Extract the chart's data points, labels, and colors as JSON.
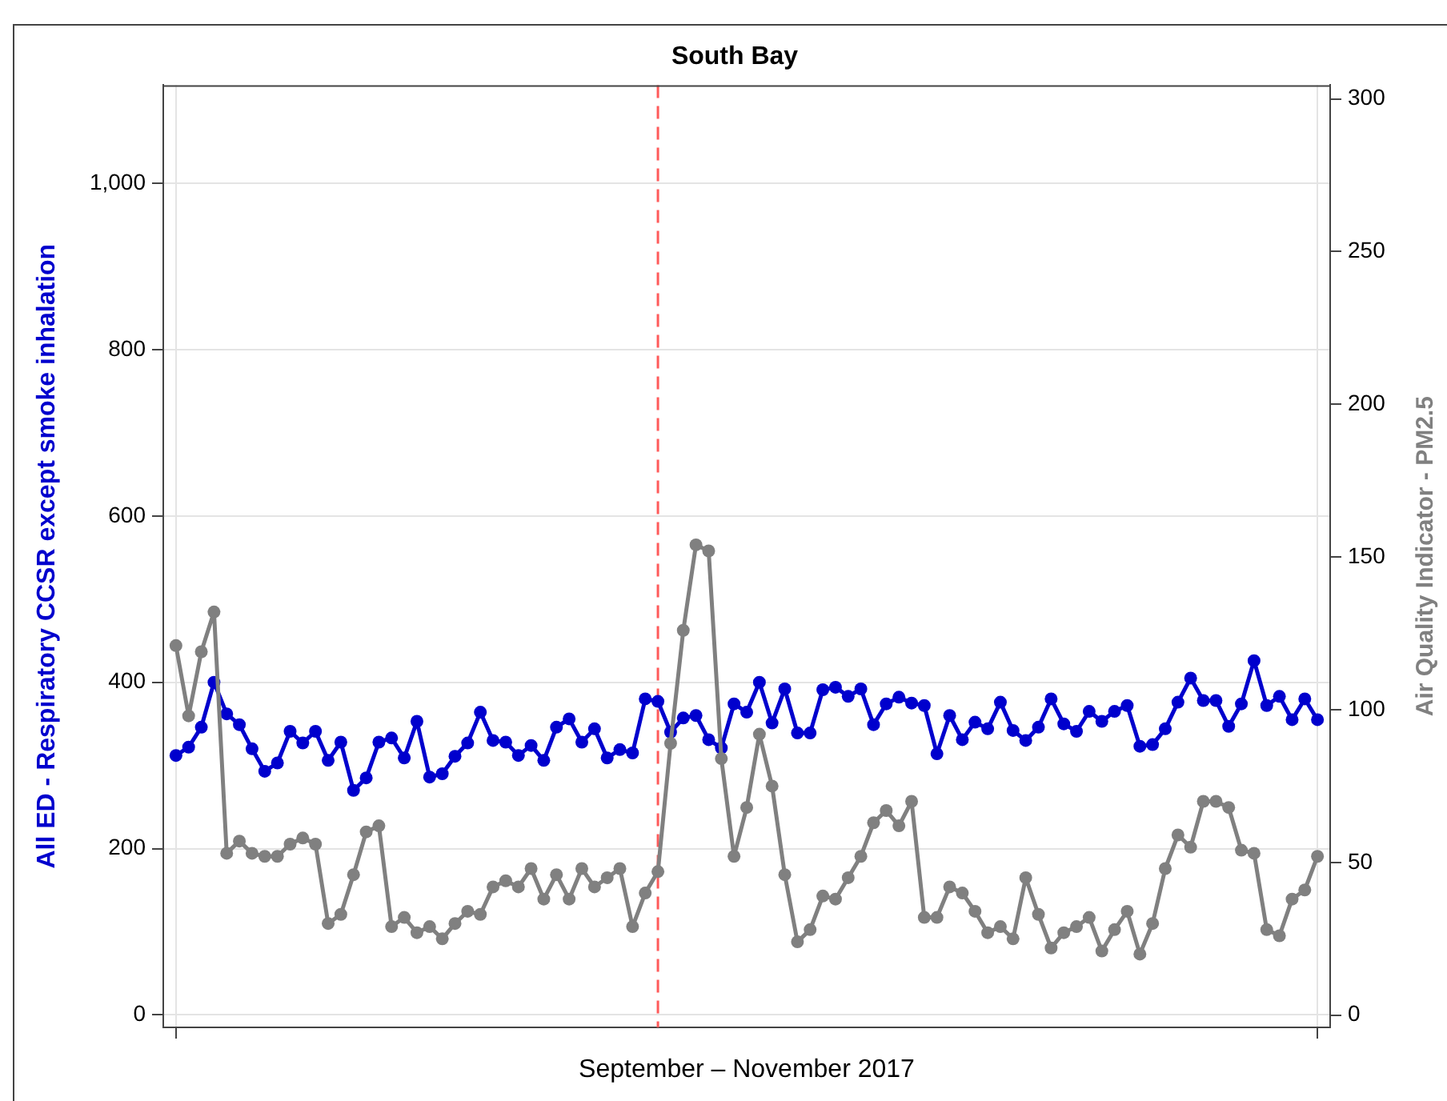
{
  "chart_data": {
    "type": "line",
    "title": "South Bay",
    "xlabel": "September – November 2017",
    "ylabel": "All ED - Respiratory CCSR except smoke inhalation",
    "y2label": "Air Quality Indicator - PM2.5",
    "categories": [
      null,
      null,
      null,
      null,
      null,
      null,
      null,
      null,
      null,
      null,
      null,
      null,
      null,
      null,
      null,
      null,
      null,
      null,
      null,
      null,
      null,
      null,
      null,
      null,
      null,
      null,
      null,
      null,
      null,
      null,
      null,
      null,
      null,
      null,
      null,
      null,
      null,
      null,
      null,
      null,
      null,
      null,
      null,
      null,
      null,
      null,
      null,
      null,
      null,
      null,
      null,
      null,
      null,
      null,
      null,
      null,
      null,
      null,
      null,
      null,
      null,
      null,
      null,
      null,
      null,
      null,
      null,
      null,
      null,
      null,
      null,
      null,
      null,
      null,
      null,
      null,
      null,
      null,
      null,
      null,
      null,
      null,
      null,
      null,
      null,
      null,
      null,
      null,
      null,
      null,
      null
    ],
    "series": [
      {
        "color": "#0000cd",
        "values": [
          312,
          322,
          346,
          400,
          362,
          349,
          320,
          293,
          303,
          341,
          327,
          341,
          306,
          328,
          270,
          285,
          328,
          333,
          309,
          353,
          286,
          290,
          311,
          327,
          364,
          330,
          328,
          312,
          324,
          306,
          346,
          356,
          328,
          344,
          309,
          319,
          315,
          380,
          377,
          340,
          357,
          360,
          331,
          321,
          374,
          364,
          400,
          351,
          392,
          339,
          339,
          391,
          394,
          383,
          392,
          349,
          374,
          382,
          375,
          372,
          314,
          360,
          331,
          352,
          344,
          376,
          342,
          330,
          346,
          380,
          350,
          341,
          365,
          353,
          365,
          372,
          323,
          325,
          344,
          376,
          405,
          378,
          378,
          347,
          374,
          426,
          372,
          383,
          355,
          380,
          355
        ]
      },
      {
        "color": "#808080",
        "axis": "y2",
        "values": [
          121,
          98,
          119,
          132,
          53,
          57,
          53,
          52,
          52,
          56,
          58,
          56,
          30,
          33,
          46,
          60,
          62,
          29,
          32,
          27,
          29,
          25,
          30,
          34,
          33,
          42,
          44,
          42,
          48,
          38,
          46,
          38,
          48,
          42,
          45,
          48,
          29,
          40,
          47,
          89,
          126,
          154,
          152,
          84,
          52,
          68,
          92,
          75,
          46,
          24,
          28,
          39,
          38,
          45,
          52,
          63,
          67,
          62,
          70,
          32,
          32,
          42,
          40,
          34,
          27,
          29,
          25,
          45,
          33,
          22,
          27,
          29,
          32,
          21,
          28,
          34,
          20,
          30,
          48,
          59,
          55,
          70,
          70,
          68,
          54,
          53,
          28,
          26,
          38,
          41,
          52
        ]
      }
    ],
    "ylim": [
      -15,
      1118
    ],
    "yticks": [
      0,
      200,
      400,
      600,
      800,
      {
        "value": 1000,
        "label": "1,000"
      }
    ],
    "y2lim": [
      -4,
      304.5
    ],
    "y2ticks": [
      0,
      50,
      100,
      150,
      200,
      250,
      300
    ],
    "grid": true,
    "legend": false,
    "marker": "circle",
    "line_style": "solid"
  }
}
